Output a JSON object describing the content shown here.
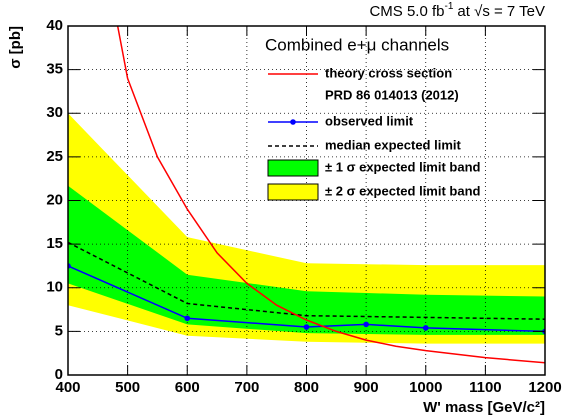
{
  "chart_data": {
    "type": "line",
    "title": "CMS 5.0 fb",
    "title_sup": "-1",
    "title_rest": "at √s  =  7 TeV",
    "legend_title": "Combined e+μ channels",
    "theory_note": "PRD 86 014013 (2012)",
    "x_label": "W' mass [GeV/c²]",
    "y_label": "σ [pb]",
    "x": [
      400,
      600,
      800,
      900,
      1000,
      1200
    ],
    "xlim": [
      400,
      1200
    ],
    "xticks": [
      400,
      500,
      600,
      700,
      800,
      900,
      1000,
      1100,
      1200
    ],
    "ylim": [
      0,
      40
    ],
    "yticks": [
      0,
      5,
      10,
      15,
      20,
      25,
      30,
      35,
      40
    ],
    "grid": true,
    "series": [
      {
        "name": "± 2 σ expected limit band",
        "color": "#ffff00",
        "lower": [
          8.0,
          4.5,
          3.8,
          3.7,
          3.6,
          3.6
        ],
        "upper": [
          30.0,
          15.8,
          12.8,
          12.7,
          12.6,
          12.6
        ]
      },
      {
        "name": "± 1 σ expected limit band",
        "color": "#00ff00",
        "lower": [
          10.5,
          5.8,
          4.8,
          4.7,
          4.6,
          4.6
        ],
        "upper": [
          21.7,
          11.5,
          9.6,
          9.4,
          9.2,
          9.0
        ]
      },
      {
        "name": "median expected limit",
        "color": "#000000",
        "dashed": true,
        "values": [
          15.2,
          8.2,
          6.8,
          6.7,
          6.6,
          6.4
        ]
      },
      {
        "name": "observed limit",
        "color": "#0000ff",
        "markers": true,
        "values": [
          12.5,
          6.5,
          5.5,
          5.8,
          5.4,
          5.0
        ]
      },
      {
        "name": "theory cross section",
        "color": "#ff0000",
        "x": [
          450,
          500,
          550,
          600,
          650,
          700,
          750,
          800,
          850,
          900,
          950,
          1000,
          1050,
          1100,
          1150,
          1200
        ],
        "values": [
          52,
          34,
          25,
          19,
          14,
          10.5,
          8,
          6.3,
          5,
          4,
          3.3,
          2.8,
          2.4,
          2.0,
          1.7,
          1.4
        ]
      }
    ]
  }
}
